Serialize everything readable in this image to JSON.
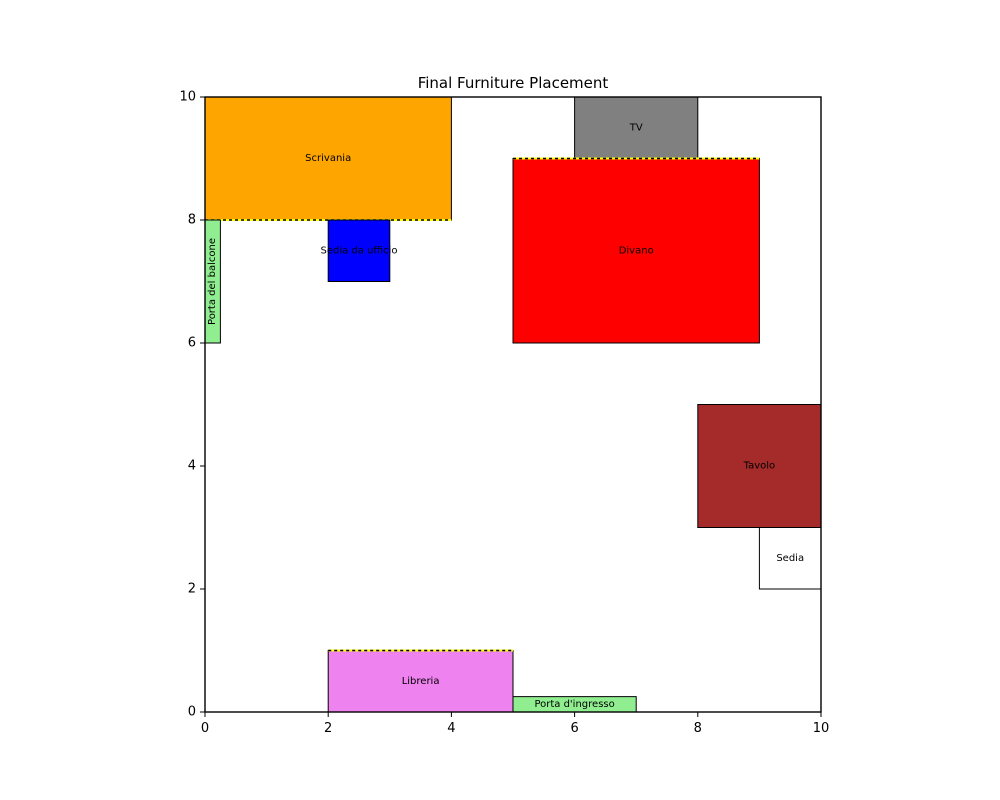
{
  "chart_data": {
    "type": "floor_plan",
    "title": "Final Furniture Placement",
    "xlim": [
      0,
      10
    ],
    "ylim": [
      0,
      10
    ],
    "xticks": [
      "0",
      "2",
      "4",
      "6",
      "8",
      "10"
    ],
    "yticks": [
      "0",
      "2",
      "4",
      "6",
      "8",
      "10"
    ],
    "items": [
      {
        "name": "Scrivania",
        "x": 0,
        "y": 8,
        "w": 4,
        "h": 2,
        "color": "#ffa500",
        "wall_edge": "bottom"
      },
      {
        "name": "TV",
        "x": 6,
        "y": 9,
        "w": 2,
        "h": 1,
        "color": "#808080"
      },
      {
        "name": "Divano",
        "x": 5,
        "y": 6,
        "w": 4,
        "h": 3,
        "color": "#ff0000",
        "wall_edge": "top"
      },
      {
        "name": "Sedia da ufficio",
        "x": 2,
        "y": 7,
        "w": 1,
        "h": 1,
        "color": "#0000ff"
      },
      {
        "name": "Porta del balcone",
        "x": 0,
        "y": 6,
        "w": 0.25,
        "h": 2,
        "color": "#90ee90",
        "rotated": true
      },
      {
        "name": "Tavolo",
        "x": 8,
        "y": 3,
        "w": 2,
        "h": 2,
        "color": "#a52a2a"
      },
      {
        "name": "Sedia",
        "x": 9,
        "y": 2,
        "w": 1,
        "h": 1,
        "color": "#ffffff"
      },
      {
        "name": "Libreria",
        "x": 2,
        "y": 0,
        "w": 3,
        "h": 1,
        "color": "#ee82ee",
        "wall_edge": "top"
      },
      {
        "name": "Porta d'ingresso",
        "x": 5,
        "y": 0,
        "w": 2,
        "h": 0.25,
        "color": "#90ee90"
      }
    ]
  }
}
